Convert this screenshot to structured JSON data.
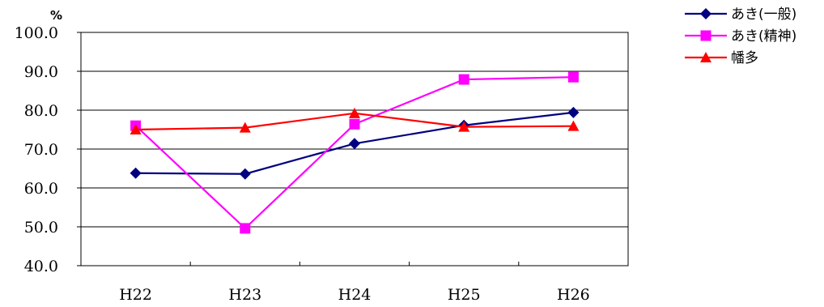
{
  "chart_data": {
    "type": "line",
    "ylabel": "%",
    "categories": [
      "H22",
      "H23",
      "H24",
      "H25",
      "H26"
    ],
    "ylim": [
      40,
      100
    ],
    "yticks": [
      "40.0",
      "50.0",
      "60.0",
      "70.0",
      "80.0",
      "90.0",
      "100.0"
    ],
    "grid": "horizontal",
    "legend_position": "top-right",
    "series": [
      {
        "name": "あき(一般)",
        "color": "#000080",
        "marker": "diamond",
        "values": [
          63.8,
          63.6,
          71.4,
          76.1,
          79.4
        ]
      },
      {
        "name": "あき(精神)",
        "color": "#FF00FF",
        "marker": "square",
        "values": [
          76.0,
          49.6,
          76.4,
          87.9,
          88.5
        ]
      },
      {
        "name": "幡多",
        "color": "#FF0000",
        "marker": "triangle",
        "values": [
          75.0,
          75.5,
          79.2,
          75.7,
          75.9
        ]
      }
    ]
  }
}
